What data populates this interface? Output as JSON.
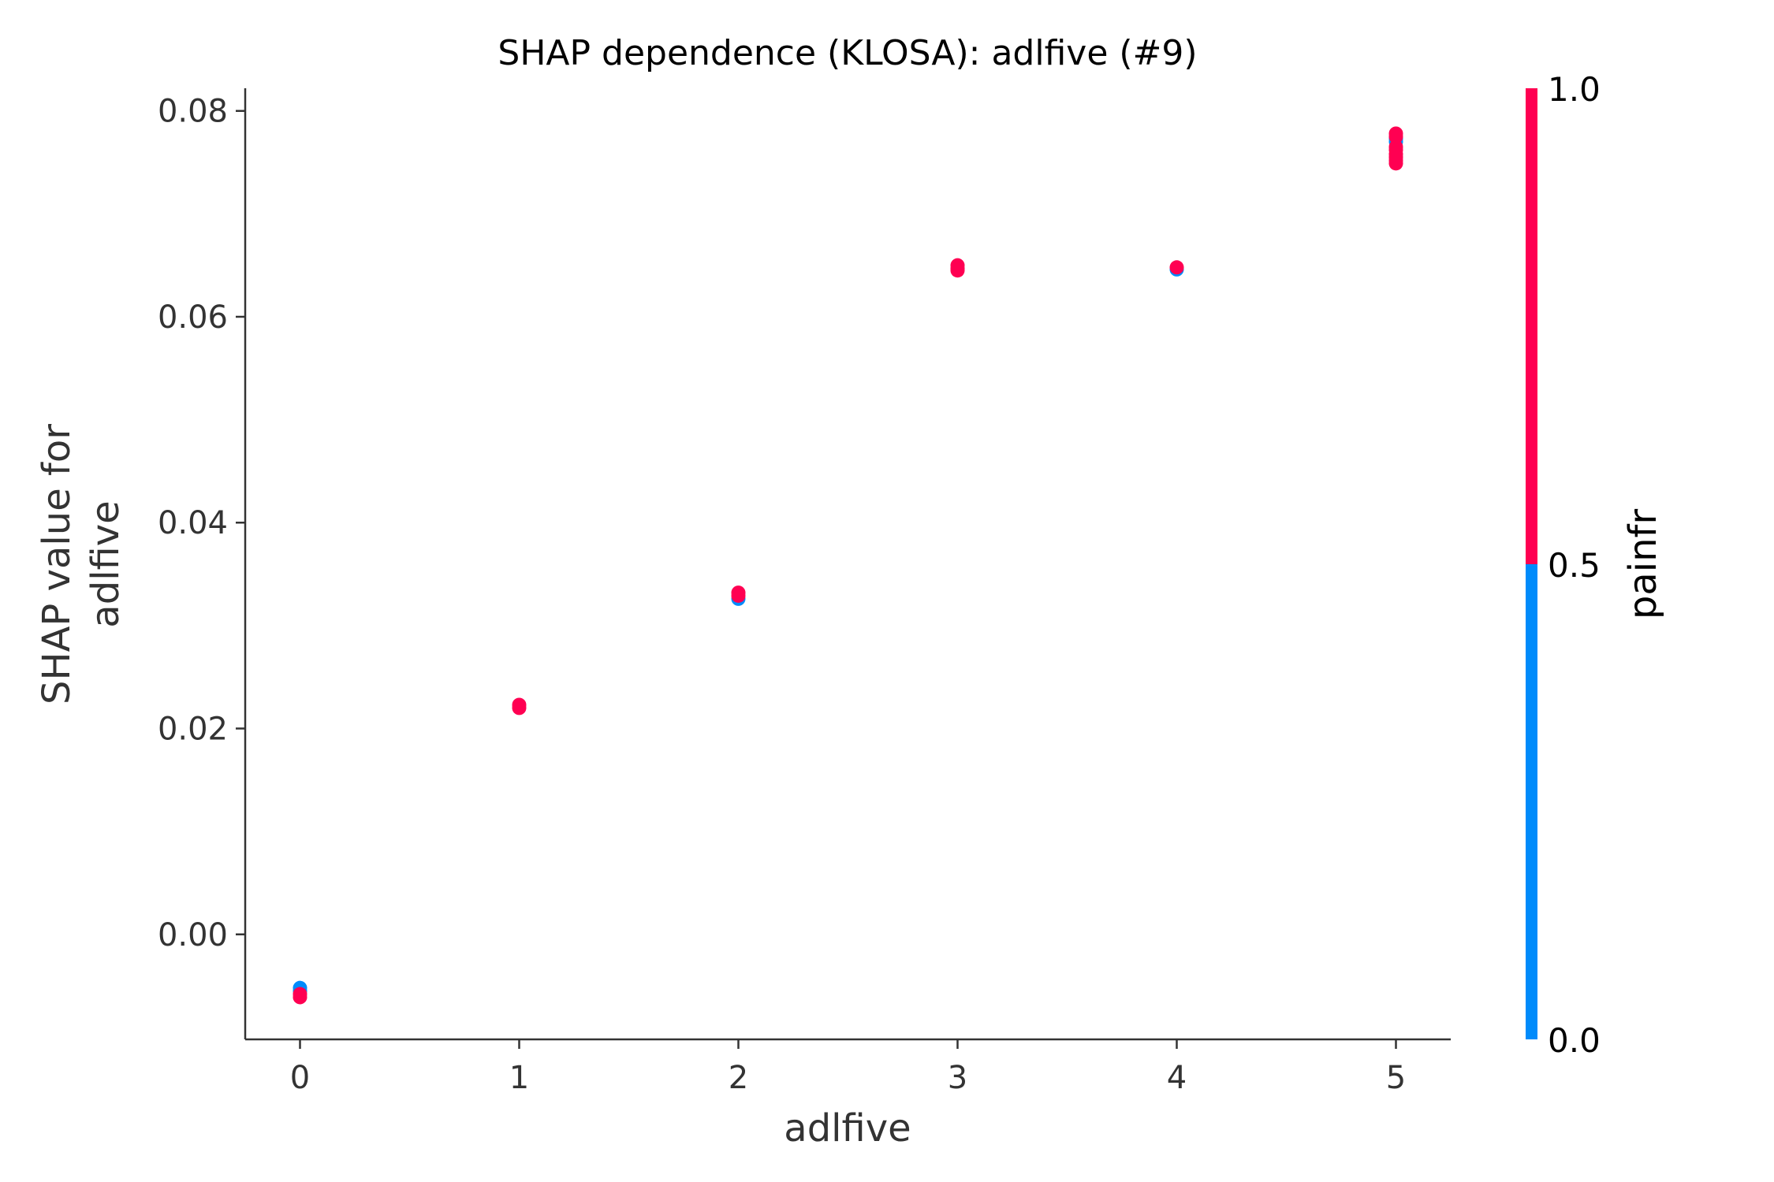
{
  "chart_data": {
    "type": "scatter",
    "title": "SHAP dependence (KLOSA): adlfive (#9)",
    "xlabel": "adlfive",
    "ylabel_lines": [
      "SHAP value for",
      "adlfive"
    ],
    "xlim": [
      -0.25,
      5.25
    ],
    "ylim": [
      -0.0102,
      0.0822
    ],
    "x_ticks": [
      0,
      1,
      2,
      3,
      4,
      5
    ],
    "x_tick_labels": [
      "0",
      "1",
      "2",
      "3",
      "4",
      "5"
    ],
    "y_ticks": [
      0.0,
      0.02,
      0.04,
      0.06,
      0.08
    ],
    "y_tick_labels": [
      "0.00",
      "0.02",
      "0.04",
      "0.06",
      "0.08"
    ],
    "grid": false,
    "colorbar": {
      "label": "painfr",
      "ticks": [
        0.0,
        0.5,
        1.0
      ],
      "tick_labels": [
        "0.0",
        "0.5",
        "1.0"
      ],
      "low_color": "#008bfb",
      "high_color": "#ff0052"
    },
    "points": [
      {
        "x": 0,
        "y": -0.0052,
        "painfr": 0
      },
      {
        "x": 0,
        "y": -0.0055,
        "painfr": 0
      },
      {
        "x": 0,
        "y": -0.0058,
        "painfr": 1
      },
      {
        "x": 0,
        "y": -0.0061,
        "painfr": 1
      },
      {
        "x": 1,
        "y": 0.0223,
        "painfr": 1
      },
      {
        "x": 1,
        "y": 0.022,
        "painfr": 1
      },
      {
        "x": 2,
        "y": 0.0326,
        "painfr": 0
      },
      {
        "x": 2,
        "y": 0.0329,
        "painfr": 1
      },
      {
        "x": 2,
        "y": 0.0332,
        "painfr": 1
      },
      {
        "x": 3,
        "y": 0.065,
        "painfr": 1
      },
      {
        "x": 3,
        "y": 0.0647,
        "painfr": 1
      },
      {
        "x": 3,
        "y": 0.0645,
        "painfr": 1
      },
      {
        "x": 4,
        "y": 0.0646,
        "painfr": 0
      },
      {
        "x": 4,
        "y": 0.0648,
        "painfr": 1
      },
      {
        "x": 5,
        "y": 0.0773,
        "painfr": 0
      },
      {
        "x": 5,
        "y": 0.077,
        "painfr": 0
      },
      {
        "x": 5,
        "y": 0.0778,
        "painfr": 1
      },
      {
        "x": 5,
        "y": 0.0775,
        "painfr": 1
      },
      {
        "x": 5,
        "y": 0.0765,
        "painfr": 1
      },
      {
        "x": 5,
        "y": 0.0762,
        "painfr": 1
      },
      {
        "x": 5,
        "y": 0.0758,
        "painfr": 1
      },
      {
        "x": 5,
        "y": 0.0755,
        "painfr": 1
      },
      {
        "x": 5,
        "y": 0.0752,
        "painfr": 1
      },
      {
        "x": 5,
        "y": 0.0749,
        "painfr": 1
      }
    ]
  }
}
